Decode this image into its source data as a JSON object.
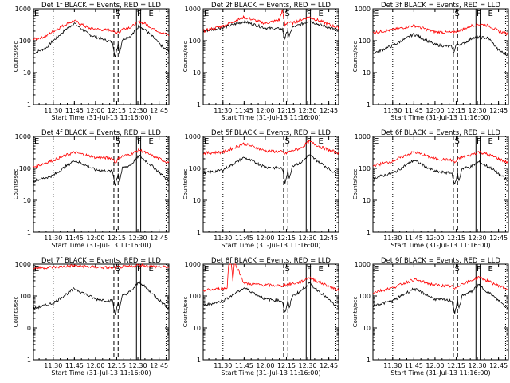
{
  "figure": {
    "start_label": "Start Time (31-Jul-13 11:16:00)",
    "ylabel": "Counts/sec",
    "x_tick_labels": [
      "11:30",
      "11:45",
      "12:00",
      "12:15",
      "12:30",
      "12:45"
    ],
    "y_tick_labels": [
      "1",
      "10",
      "100",
      "1000"
    ],
    "colors": {
      "events": "#000000",
      "lld": "#ff0000"
    },
    "markers": {
      "E": "E",
      "S": "S",
      "F": "F"
    }
  },
  "chart_data": [
    {
      "type": "line",
      "panel": "1f",
      "title": "Det 1f BLACK = Events, RED = LLD",
      "xlabel": "Start Time (31-Jul-13 11:16:00)",
      "ylabel": "Counts/sec",
      "log_y": true,
      "ylim": [
        1,
        1000
      ],
      "xlim": [
        "11:16",
        "12:52"
      ],
      "series": [
        {
          "name": "Events",
          "color": "#000000",
          "x": [
            "11:16",
            "11:25",
            "11:30",
            "11:40",
            "11:45",
            "11:55",
            "12:05",
            "12:12",
            "12:14",
            "12:16",
            "12:17",
            "12:19",
            "12:21",
            "12:25",
            "12:28",
            "12:31",
            "12:35",
            "12:40",
            "12:48",
            "12:52"
          ],
          "values": [
            40,
            60,
            100,
            250,
            350,
            160,
            110,
            90,
            30,
            80,
            40,
            110,
            120,
            140,
            200,
            300,
            220,
            140,
            60,
            45
          ]
        },
        {
          "name": "LLD",
          "color": "#ff0000",
          "x": [
            "11:16",
            "11:25",
            "11:30",
            "11:40",
            "11:45",
            "11:55",
            "12:05",
            "12:12",
            "12:14",
            "12:16",
            "12:17",
            "12:19",
            "12:21",
            "12:25",
            "12:28",
            "12:31",
            "12:35",
            "12:40",
            "12:48",
            "12:52"
          ],
          "values": [
            110,
            140,
            200,
            350,
            420,
            250,
            220,
            210,
            170,
            200,
            180,
            240,
            250,
            270,
            320,
            400,
            350,
            250,
            170,
            150
          ]
        }
      ],
      "annotations": {
        "E_times": [
          "11:16",
          "12:37"
        ],
        "S_time": "12:15",
        "F_time": "12:30",
        "dotted": [
          "11:30",
          "12:50"
        ],
        "dashed": [
          "12:13",
          "12:16"
        ],
        "solid": [
          "12:29",
          "12:32"
        ]
      }
    },
    {
      "type": "line",
      "panel": "2f",
      "title": "Det 2f BLACK = Events, RED = LLD",
      "xlabel": "Start Time (31-Jul-13 11:16:00)",
      "ylabel": "Counts/sec",
      "log_y": true,
      "ylim": [
        1,
        1000
      ],
      "xlim": [
        "11:16",
        "12:52"
      ],
      "series": [
        {
          "name": "Events",
          "color": "#000000",
          "x": [
            "11:16",
            "11:30",
            "11:45",
            "12:00",
            "12:12",
            "12:14",
            "12:16",
            "12:17",
            "12:19",
            "12:25",
            "12:31",
            "12:40",
            "12:52"
          ],
          "values": [
            200,
            260,
            400,
            250,
            230,
            120,
            230,
            130,
            260,
            320,
            420,
            300,
            210
          ]
        },
        {
          "name": "LLD",
          "color": "#ff0000",
          "x": [
            "11:16",
            "11:30",
            "11:45",
            "12:00",
            "12:10",
            "12:12",
            "12:14",
            "12:16",
            "12:19",
            "12:25",
            "12:31",
            "12:40",
            "12:52"
          ],
          "values": [
            200,
            290,
            550,
            350,
            450,
            900,
            300,
            400,
            350,
            450,
            550,
            400,
            250
          ]
        }
      ],
      "annotations": {
        "E_times": [
          "11:16",
          "12:37"
        ],
        "S_time": "12:15",
        "F_time": "12:30",
        "dotted": [
          "11:30",
          "12:50"
        ],
        "dashed": [
          "12:13",
          "12:16"
        ],
        "solid": [
          "12:29",
          "12:32"
        ]
      }
    },
    {
      "type": "line",
      "panel": "3f",
      "title": "Det 3f BLACK = Events, RED = LLD",
      "xlabel": "Start Time (31-Jul-13 11:16:00)",
      "ylabel": "Counts/sec",
      "log_y": true,
      "ylim": [
        1,
        1000
      ],
      "xlim": [
        "11:16",
        "12:52"
      ],
      "series": [
        {
          "name": "Events",
          "color": "#000000",
          "x": [
            "11:16",
            "11:30",
            "11:45",
            "12:00",
            "12:12",
            "12:13",
            "12:15",
            "12:20",
            "12:26",
            "12:31",
            "12:38",
            "12:45",
            "12:52"
          ],
          "values": [
            40,
            70,
            160,
            75,
            65,
            40,
            75,
            80,
            120,
            130,
            120,
            50,
            35
          ]
        },
        {
          "name": "LLD",
          "color": "#ff0000",
          "x": [
            "11:16",
            "11:30",
            "11:45",
            "12:00",
            "12:12",
            "12:15",
            "12:20",
            "12:26",
            "12:31",
            "12:38",
            "12:45",
            "12:52"
          ],
          "values": [
            180,
            220,
            300,
            190,
            180,
            200,
            230,
            300,
            330,
            300,
            200,
            160
          ]
        }
      ],
      "annotations": {
        "E_times": [
          "11:16",
          "12:37"
        ],
        "S_time": "12:15",
        "F_time": "12:30",
        "dotted": [
          "11:30",
          "12:50"
        ],
        "dashed": [
          "12:13",
          "12:16"
        ],
        "solid": [
          "12:29",
          "12:32"
        ]
      }
    },
    {
      "type": "line",
      "panel": "4f",
      "title": "Det 4f BLACK = Events, RED = LLD",
      "xlabel": "Start Time (31-Jul-13 11:16:00)",
      "ylabel": "Counts/sec",
      "log_y": true,
      "ylim": [
        1,
        1000
      ],
      "xlim": [
        "11:16",
        "12:52"
      ],
      "series": [
        {
          "name": "Events",
          "color": "#000000",
          "x": [
            "11:16",
            "11:30",
            "11:45",
            "12:00",
            "12:12",
            "12:14",
            "12:16",
            "12:17",
            "12:19",
            "12:25",
            "12:31",
            "12:40",
            "12:52"
          ],
          "values": [
            40,
            60,
            180,
            90,
            80,
            30,
            70,
            40,
            100,
            130,
            250,
            120,
            40
          ]
        },
        {
          "name": "LLD",
          "color": "#ff0000",
          "x": [
            "11:16",
            "11:30",
            "11:45",
            "12:00",
            "12:12",
            "12:14",
            "12:16",
            "12:19",
            "12:25",
            "12:31",
            "12:40",
            "12:52"
          ],
          "values": [
            110,
            180,
            320,
            220,
            210,
            150,
            200,
            240,
            280,
            380,
            250,
            150
          ]
        }
      ],
      "annotations": {
        "E_times": [
          "11:16",
          "12:37"
        ],
        "S_time": "12:15",
        "F_time": "12:30",
        "dotted": [
          "11:30",
          "12:50"
        ],
        "dashed": [
          "12:13",
          "12:16"
        ],
        "solid": [
          "12:29",
          "12:32"
        ]
      }
    },
    {
      "type": "line",
      "panel": "5f",
      "title": "Det 5f BLACK = Events, RED = LLD",
      "xlabel": "Start Time (31-Jul-13 11:16:00)",
      "ylabel": "Counts/sec",
      "log_y": true,
      "ylim": [
        1,
        1000
      ],
      "xlim": [
        "11:16",
        "12:52"
      ],
      "series": [
        {
          "name": "Events",
          "color": "#000000",
          "x": [
            "11:16",
            "11:30",
            "11:45",
            "12:00",
            "12:12",
            "12:14",
            "12:16",
            "12:17",
            "12:19",
            "12:25",
            "12:31",
            "12:40",
            "12:52"
          ],
          "values": [
            70,
            90,
            220,
            110,
            100,
            35,
            90,
            45,
            120,
            150,
            260,
            140,
            60
          ]
        },
        {
          "name": "LLD",
          "color": "#ff0000",
          "x": [
            "11:16",
            "11:30",
            "11:45",
            "12:00",
            "12:12",
            "12:14",
            "12:16",
            "12:19",
            "12:25",
            "12:31",
            "12:40",
            "12:52"
          ],
          "values": [
            300,
            320,
            600,
            350,
            330,
            280,
            320,
            360,
            420,
            700,
            450,
            300
          ]
        }
      ],
      "annotations": {
        "E_times": [
          "11:16",
          "12:37"
        ],
        "S_time": "12:15",
        "F_time": "12:30",
        "dotted": [
          "11:30",
          "12:50"
        ],
        "dashed": [
          "12:13",
          "12:16"
        ],
        "solid": [
          "12:29",
          "12:32"
        ]
      }
    },
    {
      "type": "line",
      "panel": "6f",
      "title": "Det 6f BLACK = Events, RED = LLD",
      "xlabel": "Start Time (31-Jul-13 11:16:00)",
      "ylabel": "Counts/sec",
      "log_y": true,
      "ylim": [
        1,
        1000
      ],
      "xlim": [
        "11:16",
        "12:52"
      ],
      "series": [
        {
          "name": "Events",
          "color": "#000000",
          "x": [
            "11:16",
            "11:30",
            "11:45",
            "12:00",
            "12:12",
            "12:14",
            "12:16",
            "12:17",
            "12:19",
            "12:25",
            "12:31",
            "12:40",
            "12:52"
          ],
          "values": [
            50,
            70,
            180,
            80,
            70,
            30,
            70,
            40,
            100,
            110,
            160,
            100,
            40
          ]
        },
        {
          "name": "LLD",
          "color": "#ff0000",
          "x": [
            "11:16",
            "11:30",
            "11:45",
            "12:00",
            "12:12",
            "12:14",
            "12:16",
            "12:19",
            "12:25",
            "12:31",
            "12:40",
            "12:52"
          ],
          "values": [
            120,
            170,
            330,
            200,
            180,
            150,
            190,
            220,
            260,
            330,
            250,
            150
          ]
        }
      ],
      "annotations": {
        "E_times": [
          "11:16",
          "12:37"
        ],
        "S_time": "12:15",
        "F_time": "12:30",
        "dotted": [
          "11:30",
          "12:50"
        ],
        "dashed": [
          "12:13",
          "12:16"
        ],
        "solid": [
          "12:29",
          "12:32"
        ]
      }
    },
    {
      "type": "line",
      "panel": "7f",
      "title": "Det 7f BLACK = Events, RED = LLD",
      "xlabel": "Start Time (31-Jul-13 11:16:00)",
      "ylabel": "Counts/sec",
      "log_y": true,
      "ylim": [
        1,
        1000
      ],
      "xlim": [
        "11:16",
        "12:52"
      ],
      "series": [
        {
          "name": "Events",
          "color": "#000000",
          "x": [
            "11:16",
            "11:30",
            "11:45",
            "12:00",
            "12:12",
            "12:14",
            "12:16",
            "12:17",
            "12:19",
            "12:25",
            "12:31",
            "12:40",
            "12:52"
          ],
          "values": [
            40,
            60,
            170,
            80,
            70,
            25,
            70,
            40,
            100,
            140,
            280,
            120,
            40
          ]
        },
        {
          "name": "LLD",
          "color": "#ff0000",
          "x": [
            "11:16",
            "11:30",
            "11:45",
            "12:00",
            "12:12",
            "12:16",
            "12:25",
            "12:31",
            "12:40",
            "12:52"
          ],
          "values": [
            750,
            800,
            900,
            800,
            780,
            800,
            850,
            950,
            850,
            800
          ]
        }
      ],
      "annotations": {
        "E_times": [
          "11:16",
          "12:37"
        ],
        "S_time": "12:15",
        "F_time": "12:30",
        "dotted": [
          "11:30",
          "12:50"
        ],
        "dashed": [
          "12:13",
          "12:16"
        ],
        "solid": [
          "12:29",
          "12:32"
        ]
      }
    },
    {
      "type": "line",
      "panel": "8f",
      "title": "Det 8f BLACK = Events, RED = LLD",
      "xlabel": "Start Time (31-Jul-13 11:16:00)",
      "ylabel": "Counts/sec",
      "log_y": true,
      "ylim": [
        1,
        1000
      ],
      "xlim": [
        "11:16",
        "12:52"
      ],
      "series": [
        {
          "name": "Events",
          "color": "#000000",
          "x": [
            "11:16",
            "11:30",
            "11:45",
            "12:00",
            "12:12",
            "12:14",
            "12:16",
            "12:17",
            "12:19",
            "12:25",
            "12:31",
            "12:40",
            "12:52"
          ],
          "values": [
            50,
            70,
            180,
            80,
            70,
            30,
            70,
            40,
            100,
            140,
            250,
            120,
            40
          ]
        },
        {
          "name": "LLD",
          "color": "#ff0000",
          "x": [
            "11:16",
            "11:30",
            "11:33",
            "11:34",
            "11:36",
            "11:37",
            "11:38",
            "11:39",
            "11:45",
            "12:00",
            "12:12",
            "12:16",
            "12:25",
            "12:31",
            "12:40",
            "12:52"
          ],
          "values": [
            150,
            170,
            180,
            1000,
            1000,
            300,
            1000,
            1000,
            250,
            220,
            210,
            230,
            270,
            380,
            250,
            150
          ]
        }
      ],
      "annotations": {
        "E_times": [
          "11:16",
          "12:37"
        ],
        "S_time": "12:15",
        "F_time": "12:30",
        "dotted": [
          "11:30",
          "12:50"
        ],
        "dashed": [
          "12:13",
          "12:16"
        ],
        "solid": [
          "12:29",
          "12:32"
        ]
      }
    },
    {
      "type": "line",
      "panel": "9f",
      "title": "Det 9f BLACK = Events, RED = LLD",
      "xlabel": "Start Time (31-Jul-13 11:16:00)",
      "ylabel": "Counts/sec",
      "log_y": true,
      "ylim": [
        1,
        1000
      ],
      "xlim": [
        "11:16",
        "12:52"
      ],
      "series": [
        {
          "name": "Events",
          "color": "#000000",
          "x": [
            "11:16",
            "11:30",
            "11:45",
            "12:00",
            "12:12",
            "12:14",
            "12:16",
            "12:17",
            "12:19",
            "12:25",
            "12:31",
            "12:40",
            "12:52"
          ],
          "values": [
            50,
            70,
            170,
            80,
            70,
            30,
            70,
            40,
            100,
            130,
            220,
            110,
            40
          ]
        },
        {
          "name": "LLD",
          "color": "#ff0000",
          "x": [
            "11:16",
            "11:30",
            "11:45",
            "12:00",
            "12:12",
            "12:14",
            "12:16",
            "12:19",
            "12:25",
            "12:31",
            "12:40",
            "12:52"
          ],
          "values": [
            130,
            180,
            330,
            220,
            200,
            160,
            200,
            240,
            290,
            400,
            260,
            160
          ]
        }
      ],
      "annotations": {
        "E_times": [
          "11:16",
          "12:37"
        ],
        "S_time": "12:15",
        "F_time": "12:30",
        "dotted": [
          "11:30",
          "12:50"
        ],
        "dashed": [
          "12:13",
          "12:16"
        ],
        "solid": [
          "12:29",
          "12:32"
        ]
      }
    }
  ]
}
